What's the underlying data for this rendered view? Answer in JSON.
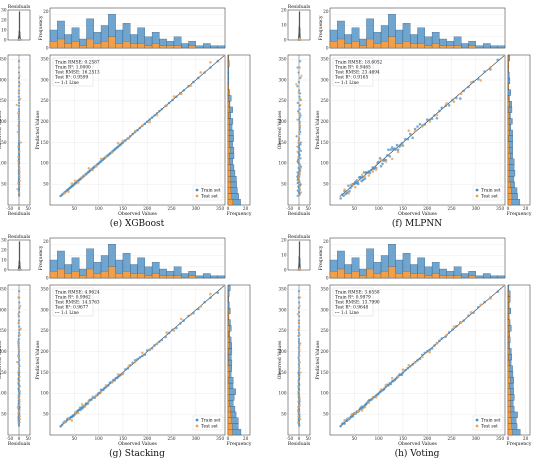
{
  "labels": {
    "residuals_title": "Residuals",
    "frequency": "Frequency",
    "observed": "Observed Values",
    "predicted": "Predicted Values",
    "residuals": "Residuals",
    "train": "Train set",
    "test": "Test set",
    "line": "1:1 Line"
  },
  "colors": {
    "train": "#4c8fc4",
    "test": "#f0a04b",
    "line": "#222222"
  },
  "panels": [
    {
      "caption": "(e) XGBoost",
      "stats": [
        "Train RMSE: 0.2587",
        "Train R²: 1.0000",
        "Test RMSE: 16.2513",
        "Test R²: 0.9599"
      ],
      "train_noise": 0.4,
      "test_noise": 16,
      "resid_scale": 1.2,
      "resid_max": 30,
      "resid_ticks": [
        0,
        10,
        20,
        30
      ],
      "test_res_spread": 14,
      "train_res_spread": 1.2,
      "freq_max": 25
    },
    {
      "caption": "(f) MLPNN",
      "stats": [
        "Train RMSE: 18.6052",
        "Train R²: 0.9465",
        "Test RMSE: 23.4694",
        "Test R²: 0.9165"
      ],
      "train_noise": 18,
      "test_noise": 23,
      "resid_scale": 1.0,
      "resid_max": 20,
      "resid_ticks": [
        0,
        10,
        20
      ],
      "test_res_spread": 20,
      "train_res_spread": 16,
      "freq_max": 25
    },
    {
      "caption": "(g) Stacking",
      "stats": [
        "Train RMSE: 4.9624",
        "Train R²: 0.9962",
        "Test RMSE: 14.5763",
        "Test R²: 0.9677"
      ],
      "train_noise": 5,
      "test_noise": 14,
      "resid_scale": 1.2,
      "resid_max": 30,
      "resid_ticks": [
        0,
        10,
        20,
        30
      ],
      "test_res_spread": 13,
      "train_res_spread": 5,
      "freq_max": 25
    },
    {
      "caption": "(h) Voting",
      "stats": [
        "Train RMSE: 3.6558",
        "Train R²: 0.9979",
        "Test RMSE: 13.7990",
        "Test R²: 0.9648"
      ],
      "train_noise": 4,
      "test_noise": 13,
      "resid_scale": 1.0,
      "resid_max": 20,
      "resid_ticks": [
        0,
        10,
        20
      ],
      "test_res_spread": 12,
      "train_res_spread": 4,
      "freq_max": 25
    }
  ],
  "chart_data": {
    "type": "scatter",
    "layout": "2x2 residual / parity panels with marginal histograms",
    "value_range": [
      0,
      360
    ],
    "observed_value_ticks": [
      50,
      100,
      150,
      200,
      250,
      300,
      350
    ],
    "residual_ticks": [
      -50,
      0,
      50
    ],
    "frequency_ticks": [
      0,
      20
    ],
    "top_histogram_ticks": [
      0,
      20
    ],
    "legend_placement": "bottom-right",
    "stats_placement": "top-left",
    "grid": true,
    "panels": [
      "(e) XGBoost",
      "(f) MLPNN",
      "(g) Stacking",
      "(h) Voting"
    ],
    "observed_train": [
      22,
      25,
      28,
      30,
      32,
      35,
      36,
      38,
      40,
      42,
      44,
      45,
      47,
      48,
      50,
      52,
      53,
      55,
      57,
      58,
      60,
      62,
      63,
      65,
      67,
      68,
      70,
      72,
      74,
      75,
      78,
      80,
      82,
      85,
      88,
      90,
      92,
      95,
      98,
      100,
      103,
      105,
      108,
      110,
      112,
      115,
      118,
      120,
      123,
      125,
      128,
      130,
      133,
      135,
      138,
      140,
      143,
      145,
      148,
      150,
      155,
      160,
      165,
      170,
      175,
      180,
      185,
      190,
      195,
      200,
      205,
      210,
      215,
      220,
      225,
      230,
      238,
      245,
      252,
      260,
      268,
      275,
      285,
      295,
      305,
      318,
      330,
      345
    ],
    "observed_test": [
      30,
      38,
      45,
      52,
      58,
      66,
      72,
      80,
      88,
      95,
      105,
      115,
      128,
      140,
      150,
      162,
      175,
      190,
      205,
      220,
      240,
      255,
      270,
      290,
      310,
      330
    ],
    "top_hist_train": [
      8,
      12,
      6,
      9,
      4,
      13,
      7,
      10,
      15,
      8,
      11,
      6,
      9,
      5,
      7,
      4,
      3,
      5,
      2,
      3,
      1,
      2,
      1,
      1
    ],
    "top_hist_test": [
      3,
      4,
      2,
      3,
      1,
      4,
      2,
      3,
      5,
      2,
      3,
      2,
      2,
      1,
      2,
      1,
      1,
      1,
      0,
      1,
      0,
      0,
      0,
      0
    ]
  }
}
